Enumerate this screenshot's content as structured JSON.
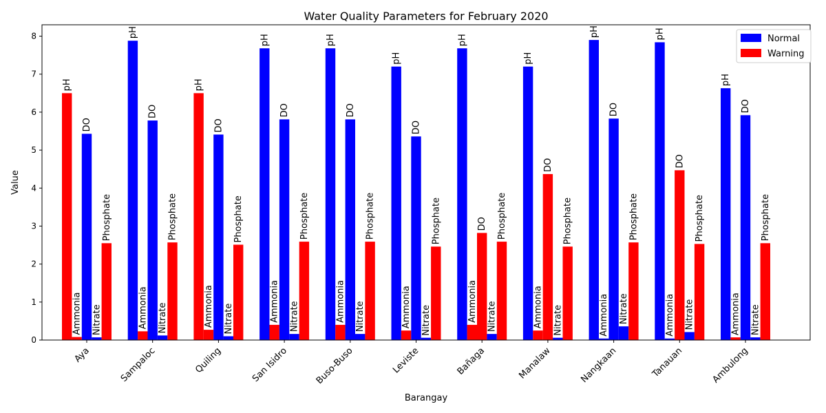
{
  "chart_data": {
    "type": "bar",
    "title": "Water Quality Parameters for February 2020",
    "xlabel": "Barangay",
    "ylabel": "Value",
    "ylim": [
      0,
      8.3
    ],
    "yticks": [
      "0",
      "1",
      "2",
      "3",
      "4",
      "5",
      "6",
      "7",
      "8"
    ],
    "parameters": [
      "pH",
      "Ammonia",
      "DO",
      "Nitrate",
      "Phosphate"
    ],
    "categories": [
      "Aya",
      "Sampaloc",
      "Quiling",
      "San Isidro",
      "Buso-Buso",
      "Leviste",
      "Bañaga",
      "Manalaw",
      "Nangkaan",
      "Tanauan",
      "Ambulong"
    ],
    "legend": {
      "position": "top-right",
      "entries": [
        {
          "label": "Normal",
          "color": "#0000ff"
        },
        {
          "label": "Warning",
          "color": "#ff0000"
        }
      ]
    },
    "status_colors": {
      "normal": "#0000ff",
      "warning": "#ff0000"
    },
    "values": [
      [
        6.5,
        0.08,
        5.43,
        0.07,
        2.55
      ],
      [
        7.88,
        0.23,
        5.78,
        0.12,
        2.57
      ],
      [
        6.5,
        0.27,
        5.41,
        0.1,
        2.51
      ],
      [
        7.68,
        0.4,
        5.81,
        0.16,
        2.59
      ],
      [
        7.68,
        0.4,
        5.81,
        0.16,
        2.59
      ],
      [
        7.2,
        0.25,
        5.36,
        0.06,
        2.46
      ],
      [
        7.68,
        0.4,
        2.82,
        0.16,
        2.59
      ],
      [
        7.2,
        0.25,
        4.37,
        0.06,
        2.46
      ],
      [
        7.9,
        0.04,
        5.83,
        0.36,
        2.57
      ],
      [
        7.84,
        0.04,
        4.47,
        0.21,
        2.53
      ],
      [
        6.63,
        0.07,
        5.92,
        0.07,
        2.55
      ]
    ],
    "status": [
      [
        "warning",
        "warning",
        "normal",
        "normal",
        "warning"
      ],
      [
        "normal",
        "warning",
        "normal",
        "normal",
        "warning"
      ],
      [
        "warning",
        "warning",
        "normal",
        "normal",
        "warning"
      ],
      [
        "normal",
        "warning",
        "normal",
        "normal",
        "warning"
      ],
      [
        "normal",
        "warning",
        "normal",
        "normal",
        "warning"
      ],
      [
        "normal",
        "warning",
        "normal",
        "normal",
        "warning"
      ],
      [
        "normal",
        "warning",
        "warning",
        "normal",
        "warning"
      ],
      [
        "normal",
        "warning",
        "warning",
        "normal",
        "warning"
      ],
      [
        "normal",
        "normal",
        "normal",
        "normal",
        "warning"
      ],
      [
        "normal",
        "normal",
        "warning",
        "normal",
        "warning"
      ],
      [
        "normal",
        "warning",
        "normal",
        "normal",
        "warning"
      ]
    ]
  }
}
